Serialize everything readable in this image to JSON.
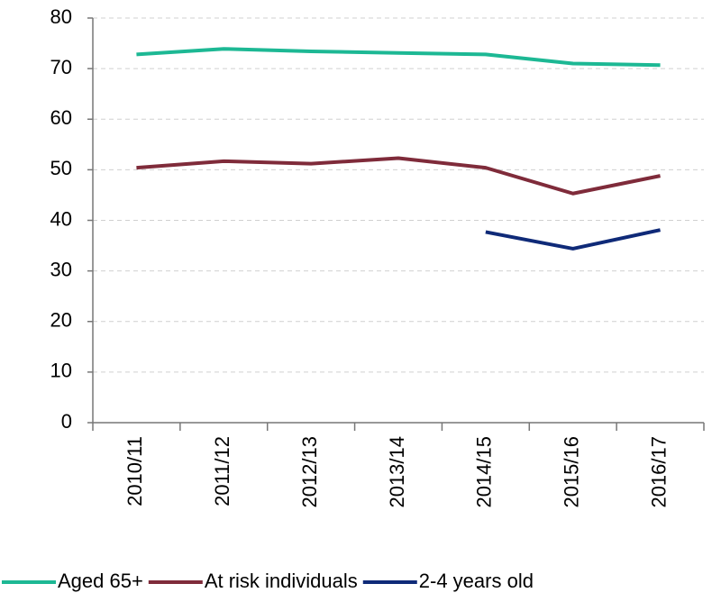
{
  "chart_data": {
    "type": "line",
    "categories": [
      "2010/11",
      "2011/12",
      "2012/13",
      "2013/14",
      "2014/15",
      "2015/16",
      "2016/17"
    ],
    "series": [
      {
        "name": "Aged 65+",
        "color": "#1db894",
        "values": [
          72.8,
          73.9,
          73.4,
          73.1,
          72.8,
          71.0,
          70.7
        ]
      },
      {
        "name": "At risk individuals",
        "color": "#7f2b3a",
        "values": [
          50.4,
          51.7,
          51.2,
          52.3,
          50.4,
          45.3,
          48.8
        ]
      },
      {
        "name": "2-4 years old",
        "color": "#0f2a78",
        "values": [
          null,
          null,
          null,
          null,
          37.7,
          34.4,
          38.1
        ]
      }
    ],
    "ylim": [
      0,
      80
    ],
    "yticks": [
      0,
      10,
      20,
      30,
      40,
      50,
      60,
      70,
      80
    ],
    "grid": true,
    "legend": "bottom"
  }
}
